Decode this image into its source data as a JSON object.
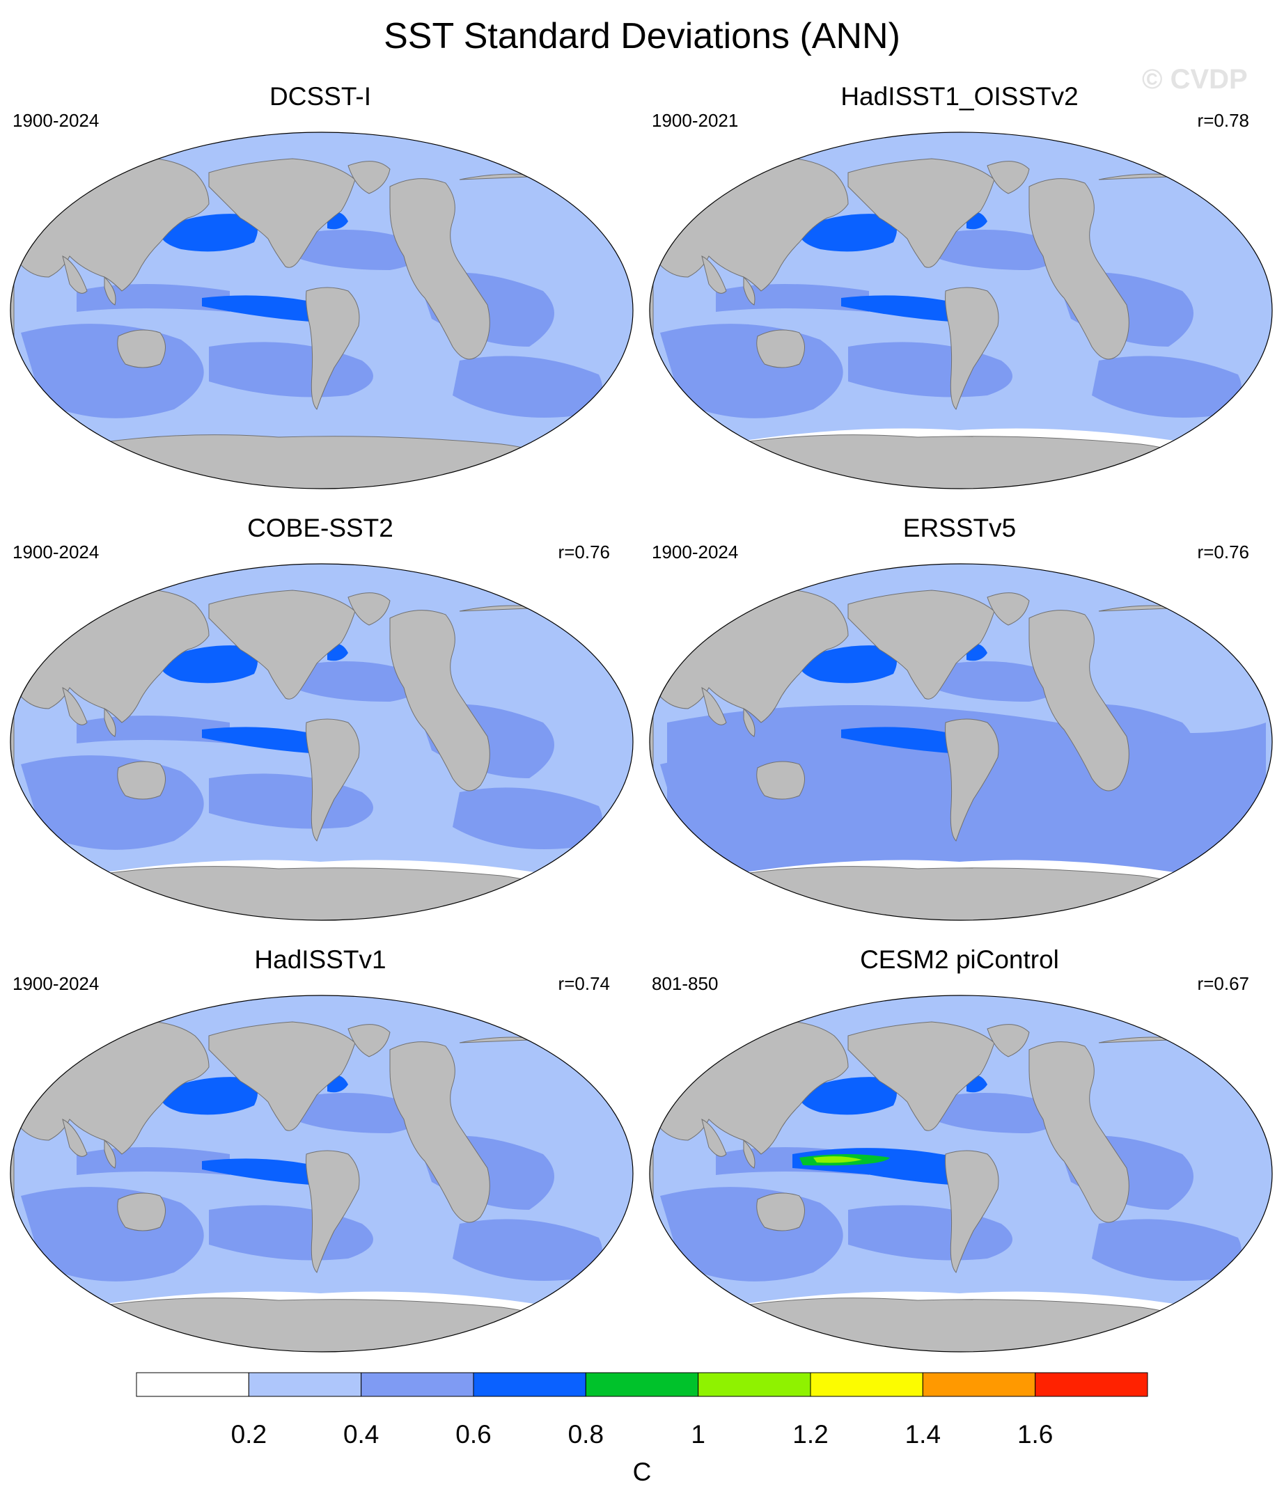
{
  "title": "SST Standard Deviations (ANN)",
  "watermark": "© CVDP",
  "colors": {
    "land": "#bcbcbc",
    "ocean_white": "#ffffff",
    "level_0_2": "#aac4fa",
    "level_2_4": "#7e9bf2",
    "level_4_6": "#0a61ff",
    "level_6_8": "#00c22b",
    "level_8_10": "#8ff200",
    "level_10_12": "#fcfc00"
  },
  "panels": [
    {
      "title": "DCSST-I",
      "years": "1900-2024",
      "corr": ""
    },
    {
      "title": "HadISST1_OISSTv2",
      "years": "1900-2021",
      "corr": "r=0.78"
    },
    {
      "title": "COBE-SST2",
      "years": "1900-2024",
      "corr": "r=0.76"
    },
    {
      "title": "ERSSTv5",
      "years": "1900-2024",
      "corr": "r=0.76"
    },
    {
      "title": "HadISSTv1",
      "years": "1900-2024",
      "corr": "r=0.74"
    },
    {
      "title": "CESM2 piControl",
      "years": "801-850",
      "corr": "r=0.67"
    }
  ],
  "colorbar": {
    "unit": "C",
    "tick_labels": [
      "0.2",
      "0.4",
      "0.6",
      "0.8",
      "1",
      "1.2",
      "1.4",
      "1.6"
    ],
    "colors": [
      "#ffffff",
      "#aec6fb",
      "#7f9bf3",
      "#0a61ff",
      "#00c22b",
      "#8ff200",
      "#fcfc00",
      "#ff9900",
      "#ff2200"
    ]
  }
}
